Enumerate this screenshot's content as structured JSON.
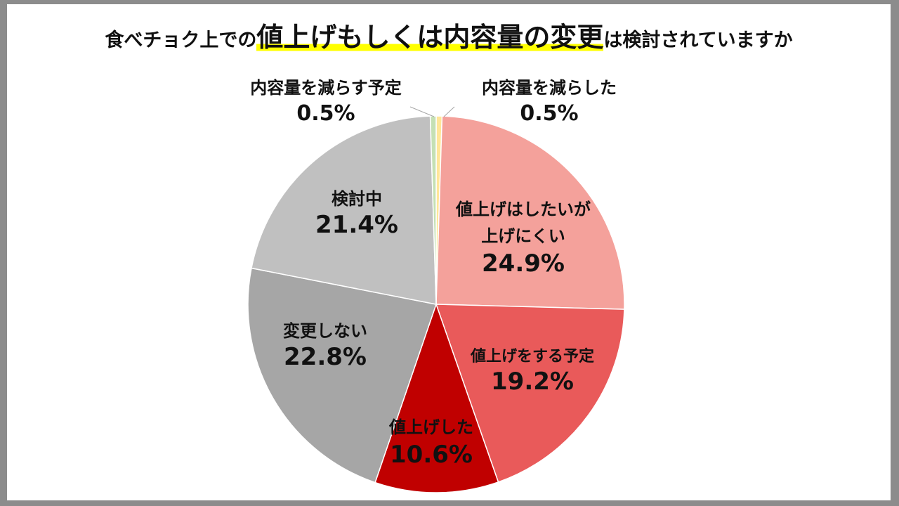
{
  "chart_data": {
    "type": "pie",
    "title": {
      "part1": "食べチョク上での",
      "part2": "値上げもしくは内容量の変更",
      "part3": "は検討されていますか"
    },
    "start": "top",
    "direction": "clockwise",
    "slices": [
      {
        "label": "内容量を減らした",
        "value": 0.5,
        "color": "#ffe699"
      },
      {
        "label": "値上げはしたいが上げにくい",
        "value": 24.9,
        "color": "#f4a19b"
      },
      {
        "label": "値上げをする予定",
        "value": 19.2,
        "color": "#e95a5a"
      },
      {
        "label": "値上げした",
        "value": 10.6,
        "color": "#c00000"
      },
      {
        "label": "変更しない",
        "value": 22.8,
        "color": "#a6a6a6"
      },
      {
        "label": "検討中",
        "value": 21.4,
        "color": "#c0c0c0"
      },
      {
        "label": "内容量を減らす予定",
        "value": 0.5,
        "color": "#c5e0b4"
      }
    ],
    "value_labels": [
      "0.5%",
      "24.9%",
      "19.2%",
      "10.6%",
      "22.8%",
      "21.4%",
      "0.5%"
    ],
    "label_lines": [
      [
        "内容量を減らした"
      ],
      [
        "値上げはしたいが",
        "上げにくい"
      ],
      [
        "値上げをする予定"
      ],
      [
        "値上げした"
      ],
      [
        "変更しない"
      ],
      [
        "検討中"
      ],
      [
        "内容量を減らす予定"
      ]
    ]
  }
}
